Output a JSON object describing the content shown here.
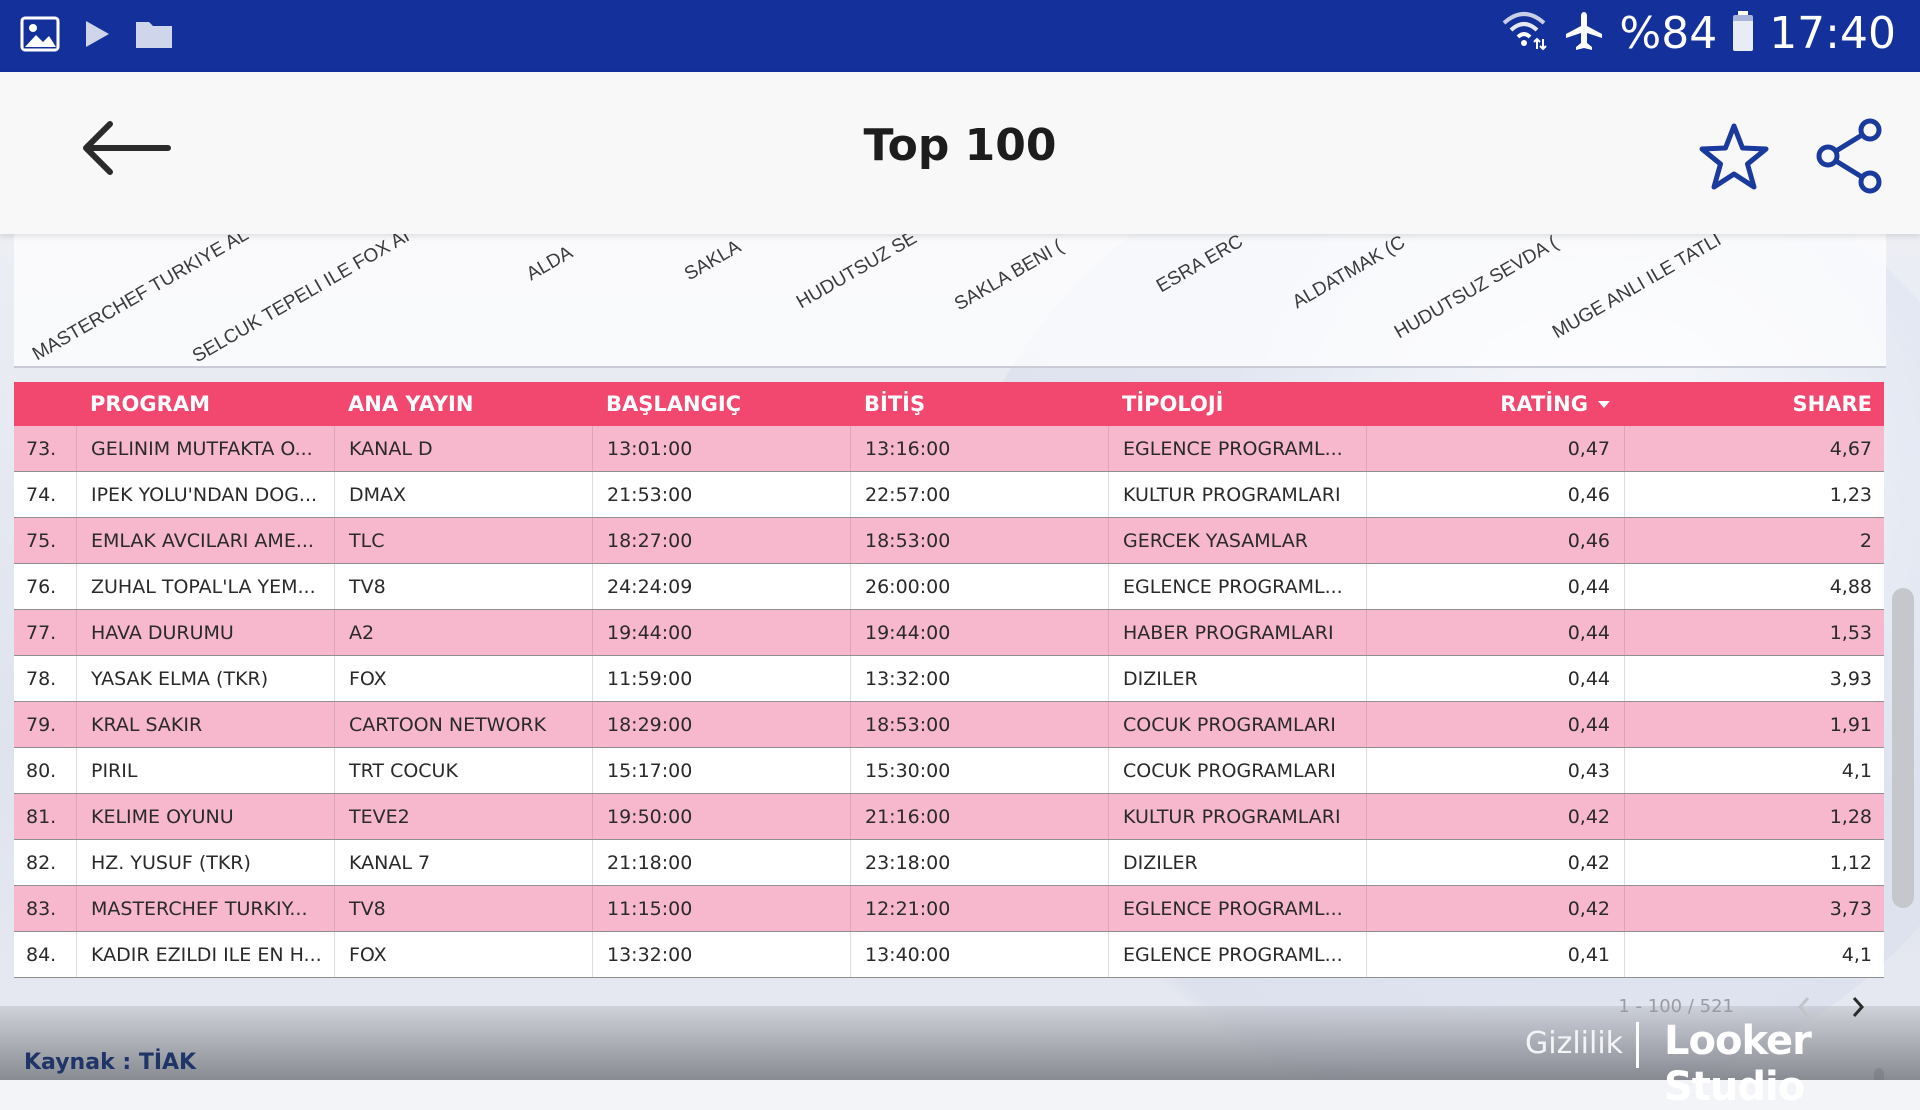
{
  "status_bar": {
    "battery": "%84",
    "time": "17:40",
    "icons": [
      "gallery-icon",
      "play-icon",
      "folder-icon",
      "wifi-icon",
      "airplane-icon",
      "battery-icon"
    ]
  },
  "app_bar": {
    "title": "Top 100",
    "back_icon": "back-arrow-icon",
    "favorite_icon": "star-icon",
    "share_icon": "share-icon"
  },
  "chart_axis_labels": [
    "MASTERCHEF TURKIYE AL",
    "SELCUK TEPELI ILE FOX AI",
    "ALDA",
    "SAKLA",
    "HUDUTSUZ SE",
    "SAKLA BENI (",
    "ESRA ERC",
    "ALDATMAK (C",
    "HUDUTSUZ SEVDA (",
    "MUGE ANLI ILE TATLI"
  ],
  "table": {
    "headers": {
      "program": "PROGRAM",
      "channel": "ANA YAYIN",
      "start": "BAŞLANGIÇ",
      "end": "BİTİŞ",
      "typology": "TİPOLOJİ",
      "rating": "RATİNG",
      "share": "SHARE"
    },
    "rows": [
      {
        "idx": "73.",
        "program": "GELINIM MUTFAKTA O...",
        "channel": "KANAL D",
        "start": "13:01:00",
        "end": "13:16:00",
        "typology": "EGLENCE PROGRAML...",
        "rating": "0,47",
        "share": "4,67"
      },
      {
        "idx": "74.",
        "program": "IPEK YOLU'NDAN DOG...",
        "channel": "DMAX",
        "start": "21:53:00",
        "end": "22:57:00",
        "typology": "KULTUR PROGRAMLARI",
        "rating": "0,46",
        "share": "1,23"
      },
      {
        "idx": "75.",
        "program": "EMLAK AVCILARI AME...",
        "channel": "TLC",
        "start": "18:27:00",
        "end": "18:53:00",
        "typology": "GERCEK YASAMLAR",
        "rating": "0,46",
        "share": "2"
      },
      {
        "idx": "76.",
        "program": "ZUHAL TOPAL'LA YEM...",
        "channel": "TV8",
        "start": "24:24:09",
        "end": "26:00:00",
        "typology": "EGLENCE PROGRAML...",
        "rating": "0,44",
        "share": "4,88"
      },
      {
        "idx": "77.",
        "program": "HAVA DURUMU",
        "channel": "A2",
        "start": "19:44:00",
        "end": "19:44:00",
        "typology": "HABER PROGRAMLARI",
        "rating": "0,44",
        "share": "1,53"
      },
      {
        "idx": "78.",
        "program": "YASAK ELMA (TKR)",
        "channel": "FOX",
        "start": "11:59:00",
        "end": "13:32:00",
        "typology": "DIZILER",
        "rating": "0,44",
        "share": "3,93"
      },
      {
        "idx": "79.",
        "program": "KRAL SAKIR",
        "channel": "CARTOON NETWORK",
        "start": "18:29:00",
        "end": "18:53:00",
        "typology": "COCUK PROGRAMLARI",
        "rating": "0,44",
        "share": "1,91"
      },
      {
        "idx": "80.",
        "program": "PIRIL",
        "channel": "TRT COCUK",
        "start": "15:17:00",
        "end": "15:30:00",
        "typology": "COCUK PROGRAMLARI",
        "rating": "0,43",
        "share": "4,1"
      },
      {
        "idx": "81.",
        "program": "KELIME OYUNU",
        "channel": "TEVE2",
        "start": "19:50:00",
        "end": "21:16:00",
        "typology": "KULTUR PROGRAMLARI",
        "rating": "0,42",
        "share": "1,28"
      },
      {
        "idx": "82.",
        "program": "HZ. YUSUF (TKR)",
        "channel": "KANAL 7",
        "start": "21:18:00",
        "end": "23:18:00",
        "typology": "DIZILER",
        "rating": "0,42",
        "share": "1,12"
      },
      {
        "idx": "83.",
        "program": "MASTERCHEF TURKIY...",
        "channel": "TV8",
        "start": "11:15:00",
        "end": "12:21:00",
        "typology": "EGLENCE PROGRAML...",
        "rating": "0,42",
        "share": "3,73"
      },
      {
        "idx": "84.",
        "program": "KADIR EZILDI ILE EN H...",
        "channel": "FOX",
        "start": "13:32:00",
        "end": "13:40:00",
        "typology": "EGLENCE PROGRAML...",
        "rating": "0,41",
        "share": "4,1"
      }
    ]
  },
  "pagination": {
    "range": "1 - 100 / 521"
  },
  "footer": {
    "source": "Kaynak : TİAK",
    "privacy": "Gizlilik",
    "brand": "Looker Studio"
  },
  "colors": {
    "status_bar": "#14309b",
    "table_header": "#f2486f",
    "row_pink": "#f7b8cd",
    "row_white": "#ffffff",
    "accent_icon": "#1a3a9e"
  }
}
